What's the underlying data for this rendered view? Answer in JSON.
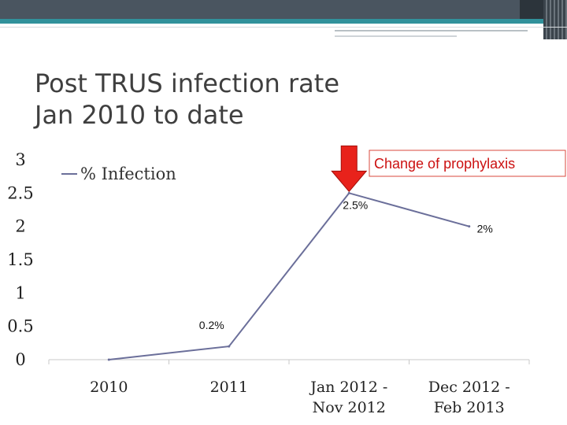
{
  "title": {
    "line1": "Post TRUS infection rate",
    "line2": "Jan 2010 to date"
  },
  "callout": {
    "text": "Change of prophylaxis",
    "color": "#cc1111",
    "arrow_color": "#e8221b"
  },
  "chart_data": {
    "type": "line",
    "categories": [
      "2010",
      "2011",
      "Jan 2012 -\nNov 2012",
      "Dec 2012 -\nFeb 2013"
    ],
    "series": [
      {
        "name": "% Infection",
        "color": "#6b6f9a",
        "values": [
          0,
          0.2,
          2.5,
          2
        ],
        "data_labels": [
          "",
          "0.2%",
          "2.5%",
          "2%"
        ]
      }
    ],
    "ylim": [
      0,
      3
    ],
    "yticks": [
      "0",
      "0.5",
      "1",
      "1.5",
      "2",
      "2.5",
      "3"
    ],
    "grid": false,
    "legend": "top-left"
  }
}
